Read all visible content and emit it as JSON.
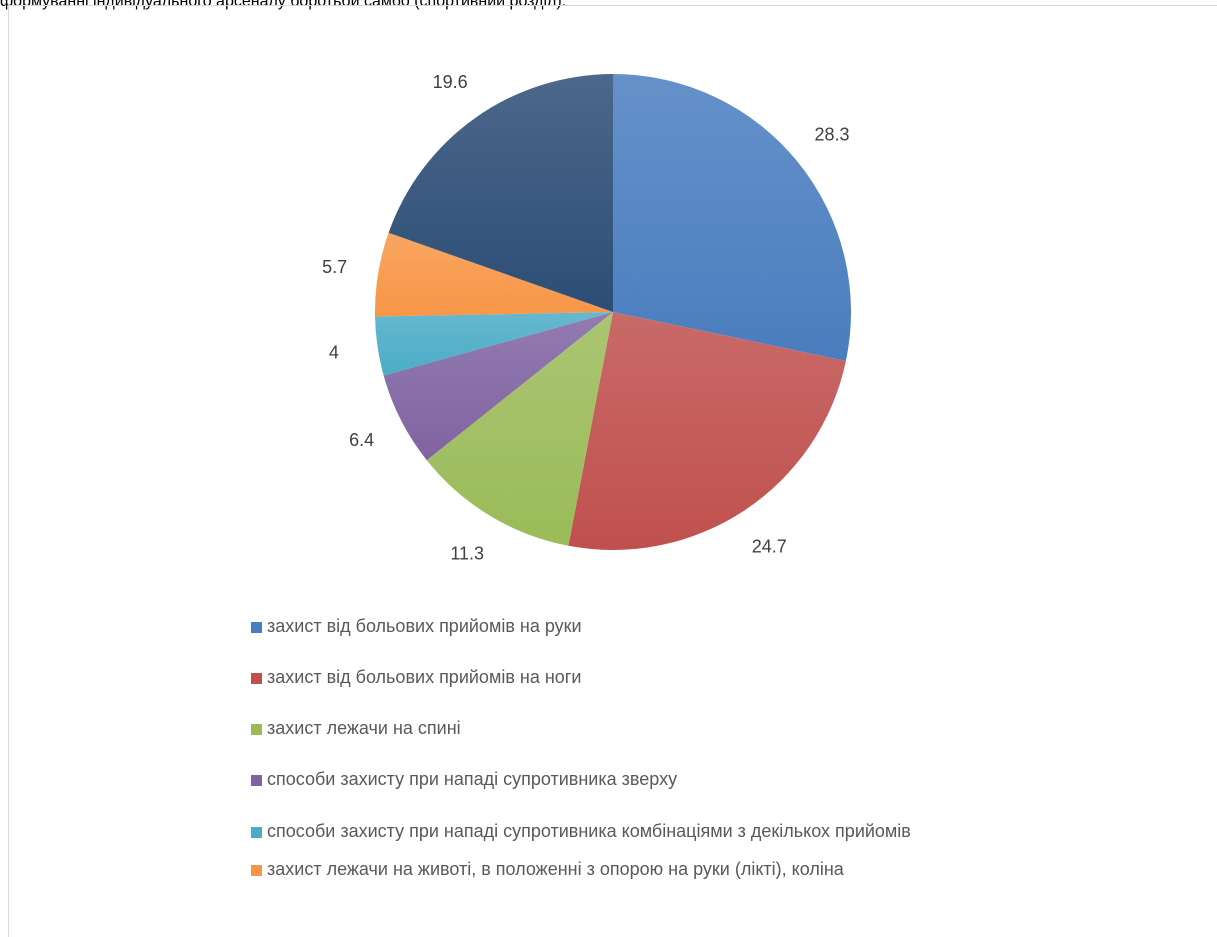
{
  "top_text": "формуванні індивідуального арсеналу боротьби самбо (спортивний розділ).",
  "chart_data": {
    "type": "pie",
    "start_angle_deg": 0,
    "direction": "clockwise",
    "slices": [
      {
        "label": "захист від больових прийомів на руки",
        "value": 28.3,
        "color": "#4a7dbf"
      },
      {
        "label": "захист від больових прийомів на ноги",
        "value": 24.7,
        "color": "#c0504d"
      },
      {
        "label": "захист лежачи на спині",
        "value": 11.3,
        "color": "#9bbb59"
      },
      {
        "label": "способи захисту при нападі супротивника зверху",
        "value": 6.4,
        "color": "#8064a2"
      },
      {
        "label": "способи захисту при нападі супротивника комбінаціями з декількох прийомів",
        "value": 4,
        "color": "#4bacc6"
      },
      {
        "label": "захист лежачи на животі, в положенні з опорою на руки (лікті), коліна",
        "value": 5.7,
        "color": "#f79646"
      },
      {
        "label": "",
        "value": 19.6,
        "color": "#2c4d75"
      }
    ],
    "legend_position": "bottom"
  }
}
